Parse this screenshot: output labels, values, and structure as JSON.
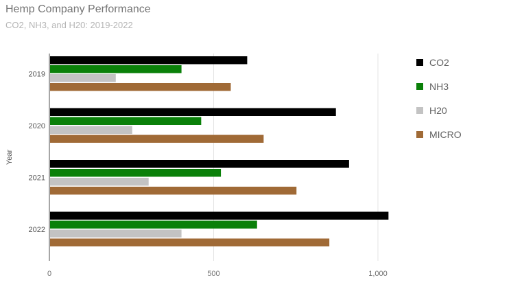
{
  "header": {
    "title": "Hemp Company Performance",
    "subtitle": "CO2, NH3, and H20: 2019-2022"
  },
  "chart_data": {
    "type": "bar",
    "orientation": "horizontal",
    "title": "Hemp Company Performance",
    "subtitle": "CO2, NH3, and H20: 2019-2022",
    "xlabel": "",
    "ylabel": "Year",
    "xlim": [
      0,
      1150
    ],
    "x_ticks": [
      0,
      500,
      1000
    ],
    "x_tick_labels": [
      "0",
      "500",
      "1,000"
    ],
    "grid": true,
    "legend_position": "right",
    "categories": [
      "2019",
      "2020",
      "2021",
      "2022"
    ],
    "series": [
      {
        "name": "CO2",
        "color": "#000000",
        "values": [
          600,
          870,
          910,
          1030
        ]
      },
      {
        "name": "NH3",
        "color": "#0a8009",
        "values": [
          400,
          460,
          520,
          630
        ]
      },
      {
        "name": "H20",
        "color": "#c3c3c3",
        "values": [
          200,
          250,
          300,
          400
        ]
      },
      {
        "name": "MICRO",
        "color": "#a06a36",
        "values": [
          550,
          650,
          750,
          850
        ]
      }
    ]
  }
}
